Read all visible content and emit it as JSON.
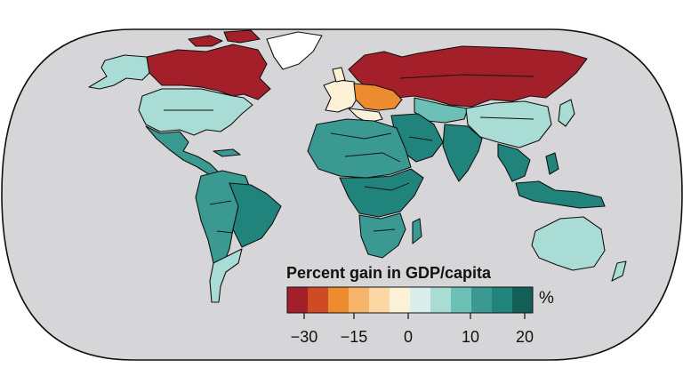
{
  "legend": {
    "title": "Percent gain in GDP/capita",
    "unit": "%",
    "ticks": [
      "−30",
      "−15",
      "0",
      "10",
      "20"
    ],
    "bins": [
      {
        "range": [
          -30,
          -25
        ],
        "color": "#a3202a"
      },
      {
        "range": [
          -25,
          -20
        ],
        "color": "#cf4b25"
      },
      {
        "range": [
          -20,
          -15
        ],
        "color": "#ec8c2e"
      },
      {
        "range": [
          -15,
          -10
        ],
        "color": "#f6b36a"
      },
      {
        "range": [
          -10,
          -5
        ],
        "color": "#fbd7a3"
      },
      {
        "range": [
          -5,
          0
        ],
        "color": "#fdf1d7"
      },
      {
        "range": [
          0,
          3
        ],
        "color": "#d8efec"
      },
      {
        "range": [
          3,
          6
        ],
        "color": "#a9dcd5"
      },
      {
        "range": [
          6,
          10
        ],
        "color": "#6cc0b5"
      },
      {
        "range": [
          10,
          14
        ],
        "color": "#3a9a91"
      },
      {
        "range": [
          14,
          17
        ],
        "color": "#20847c"
      },
      {
        "range": [
          17,
          20
        ],
        "color": "#145e58"
      }
    ]
  },
  "regions": [
    {
      "name": "Canada",
      "color": "#a3202a"
    },
    {
      "name": "Alaska",
      "color": "#a9dcd5"
    },
    {
      "name": "United States",
      "color": "#a9dcd5"
    },
    {
      "name": "Greenland",
      "color": "#ffffff"
    },
    {
      "name": "Mexico & Central America",
      "color": "#3a9a91"
    },
    {
      "name": "South America",
      "color": "#3a9a91"
    },
    {
      "name": "Brazil",
      "color": "#20847c"
    },
    {
      "name": "Southern Cone",
      "color": "#a9dcd5"
    },
    {
      "name": "Scandinavia & Russia",
      "color": "#a3202a"
    },
    {
      "name": "Eastern Europe",
      "color": "#ec8c2e"
    },
    {
      "name": "Western Europe",
      "color": "#fdf1d7"
    },
    {
      "name": "Middle East",
      "color": "#20847c"
    },
    {
      "name": "Central Asia",
      "color": "#6cc0b5"
    },
    {
      "name": "China",
      "color": "#a9dcd5"
    },
    {
      "name": "India",
      "color": "#20847c"
    },
    {
      "name": "Southeast Asia",
      "color": "#20847c"
    },
    {
      "name": "North Africa",
      "color": "#3a9a91"
    },
    {
      "name": "Central Africa",
      "color": "#20847c"
    },
    {
      "name": "Southern Africa",
      "color": "#3a9a91"
    },
    {
      "name": "Japan",
      "color": "#a9dcd5"
    },
    {
      "name": "Indonesia",
      "color": "#20847c"
    },
    {
      "name": "Australia",
      "color": "#a9dcd5"
    }
  ],
  "colors": {
    "ocean": "#d6d6d8",
    "page": "#ffffff",
    "outline": "#111111"
  }
}
